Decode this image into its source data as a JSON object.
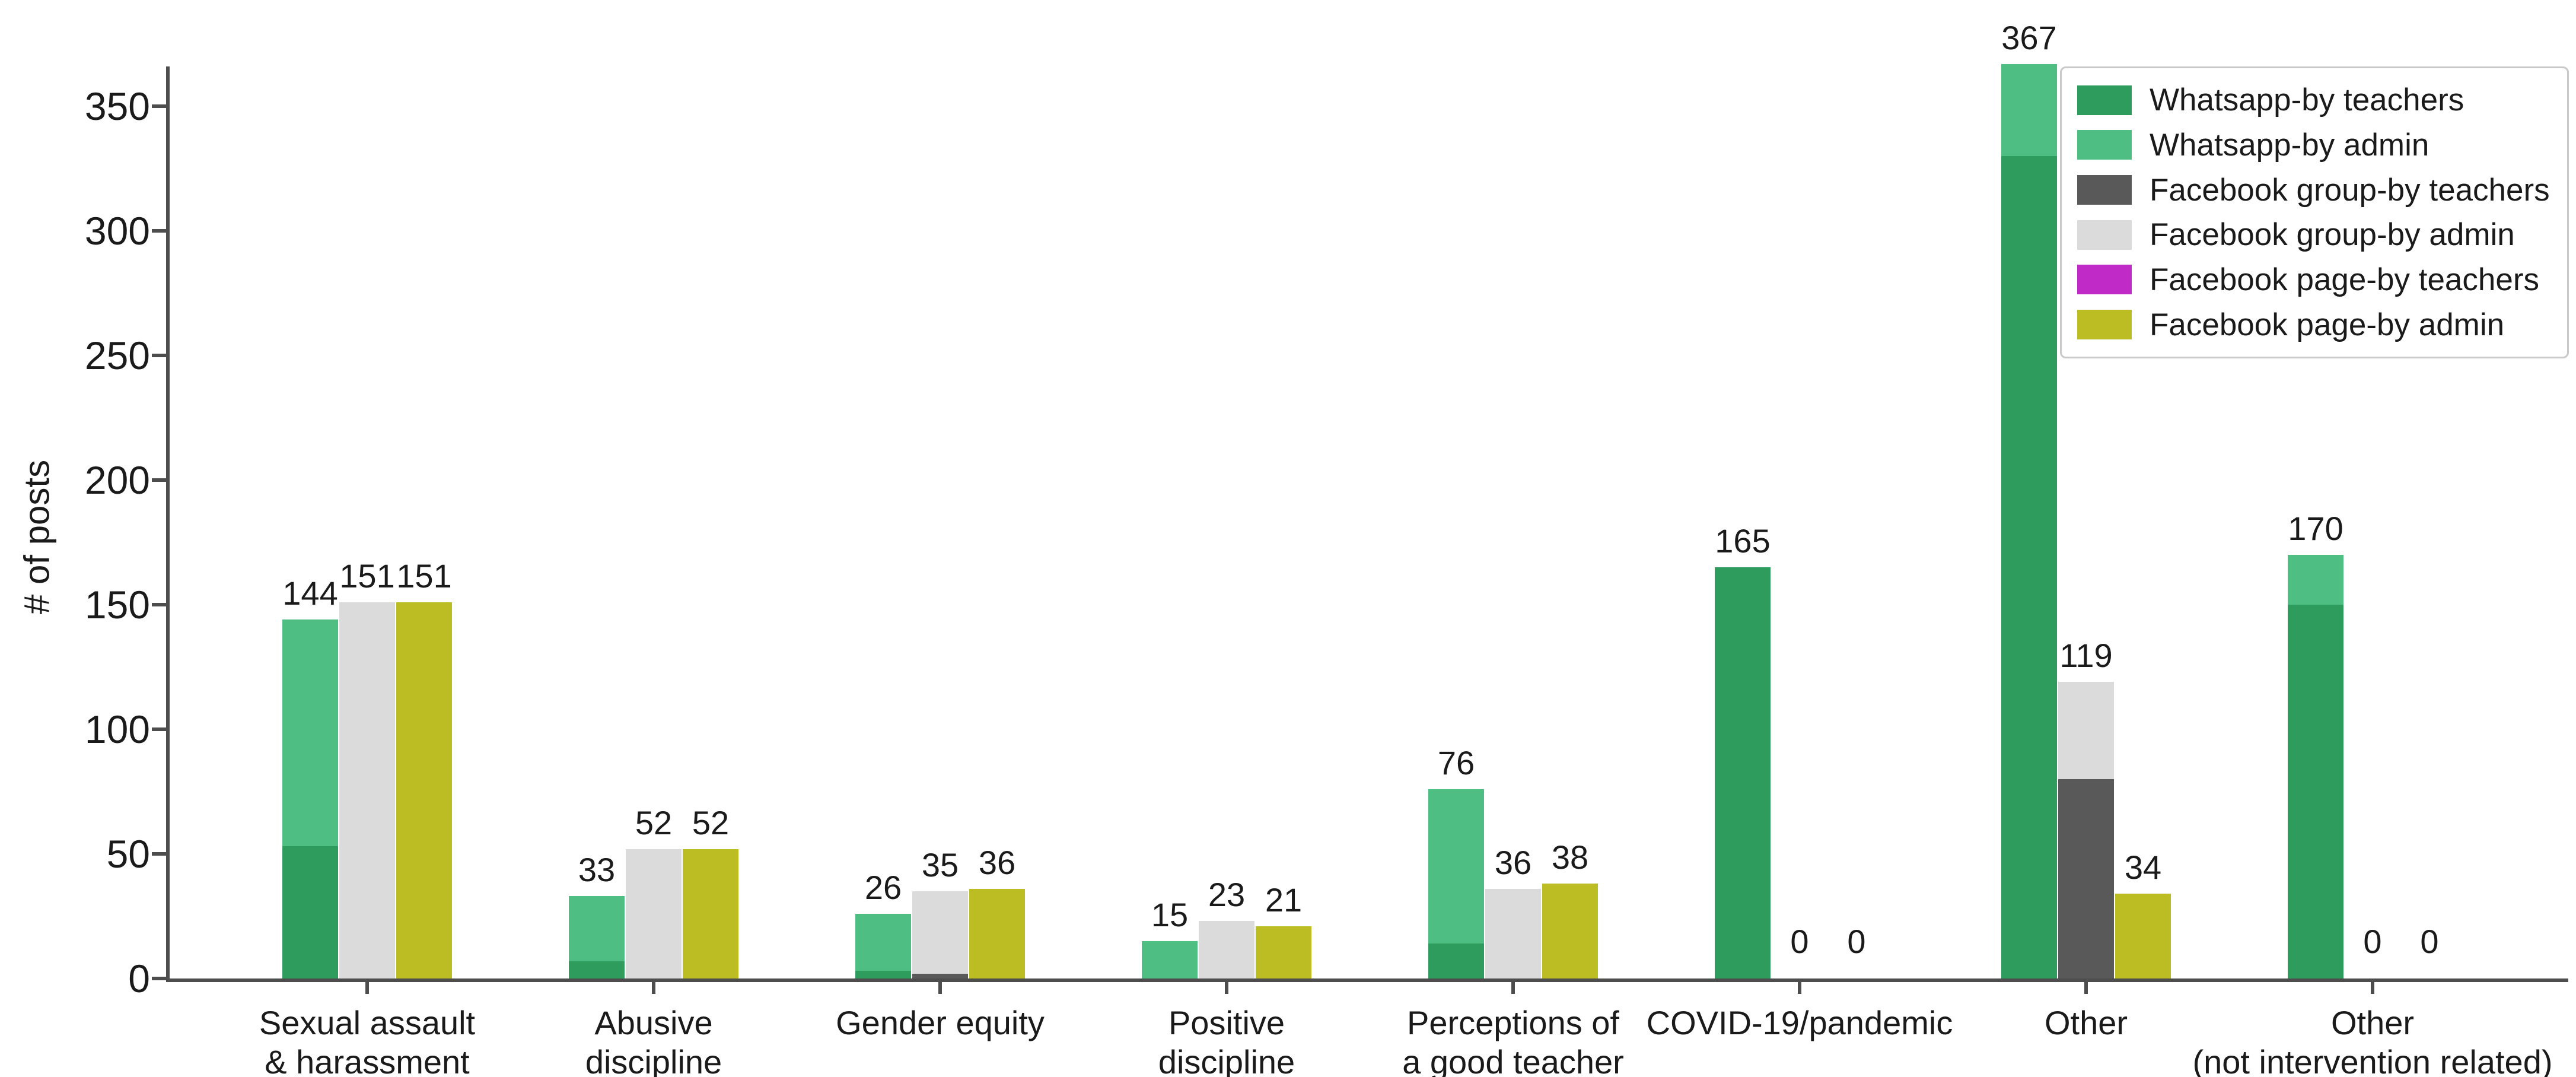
{
  "chart_data": {
    "type": "bar",
    "title": "",
    "xlabel": "",
    "ylabel": "# of posts",
    "ylim": [
      0,
      370
    ],
    "yticks": [
      0,
      50,
      100,
      150,
      200,
      250,
      300,
      350
    ],
    "grid": false,
    "legend_position": "upper right",
    "legend": [
      {
        "name": "Whatsapp-by teachers",
        "color": "#2E9C5C"
      },
      {
        "name": "Whatsapp-by admin",
        "color": "#4FBE82"
      },
      {
        "name": "Facebook group-by teachers",
        "color": "#595959"
      },
      {
        "name": "Facebook group-by admin",
        "color": "#DBDBDB"
      },
      {
        "name": "Facebook page-by teachers",
        "color": "#C02BC7"
      },
      {
        "name": "Facebook page-by admin",
        "color": "#BCBD22"
      }
    ],
    "bar_slots": [
      "whatsapp",
      "facebook_group",
      "facebook_page"
    ],
    "note": "Each category has 3 stacked bars: teachers segment on bottom, admin segment on top. Label above each bar is the stack total.",
    "categories": [
      {
        "label": "Sexual assault\n& harassment",
        "bars": [
          {
            "slot": "whatsapp",
            "total": 144,
            "teachers": 53,
            "admin": 91
          },
          {
            "slot": "facebook_group",
            "total": 151,
            "teachers": 0,
            "admin": 151
          },
          {
            "slot": "facebook_page",
            "total": 151,
            "teachers": 0,
            "admin": 151
          }
        ]
      },
      {
        "label": "Abusive\ndiscipline",
        "bars": [
          {
            "slot": "whatsapp",
            "total": 33,
            "teachers": 7,
            "admin": 26
          },
          {
            "slot": "facebook_group",
            "total": 52,
            "teachers": 0,
            "admin": 52
          },
          {
            "slot": "facebook_page",
            "total": 52,
            "teachers": 0,
            "admin": 52
          }
        ]
      },
      {
        "label": "Gender equity",
        "bars": [
          {
            "slot": "whatsapp",
            "total": 26,
            "teachers": 3,
            "admin": 23
          },
          {
            "slot": "facebook_group",
            "total": 35,
            "teachers": 2,
            "admin": 33
          },
          {
            "slot": "facebook_page",
            "total": 36,
            "teachers": 0,
            "admin": 36
          }
        ]
      },
      {
        "label": "Positive\ndiscipline",
        "bars": [
          {
            "slot": "whatsapp",
            "total": 15,
            "teachers": 0,
            "admin": 15
          },
          {
            "slot": "facebook_group",
            "total": 23,
            "teachers": 0,
            "admin": 23
          },
          {
            "slot": "facebook_page",
            "total": 21,
            "teachers": 0,
            "admin": 21
          }
        ]
      },
      {
        "label": "Perceptions of\na good teacher",
        "bars": [
          {
            "slot": "whatsapp",
            "total": 76,
            "teachers": 14,
            "admin": 62
          },
          {
            "slot": "facebook_group",
            "total": 36,
            "teachers": 0,
            "admin": 36
          },
          {
            "slot": "facebook_page",
            "total": 38,
            "teachers": 0,
            "admin": 38
          }
        ]
      },
      {
        "label": "COVID-19/pandemic",
        "bars": [
          {
            "slot": "whatsapp",
            "total": 165,
            "teachers": 165,
            "admin": 0
          },
          {
            "slot": "facebook_group",
            "total": 0,
            "teachers": 0,
            "admin": 0
          },
          {
            "slot": "facebook_page",
            "total": 0,
            "teachers": 0,
            "admin": 0
          }
        ]
      },
      {
        "label": "Other",
        "bars": [
          {
            "slot": "whatsapp",
            "total": 367,
            "teachers": 330,
            "admin": 37
          },
          {
            "slot": "facebook_group",
            "total": 119,
            "teachers": 80,
            "admin": 39
          },
          {
            "slot": "facebook_page",
            "total": 34,
            "teachers": 0,
            "admin": 34
          }
        ]
      },
      {
        "label": "Other\n(not intervention related)",
        "bars": [
          {
            "slot": "whatsapp",
            "total": 170,
            "teachers": 150,
            "admin": 20
          },
          {
            "slot": "facebook_group",
            "total": 0,
            "teachers": 0,
            "admin": 0
          },
          {
            "slot": "facebook_page",
            "total": 0,
            "teachers": 0,
            "admin": 0
          }
        ]
      }
    ],
    "zero_label": "0"
  },
  "colors": {
    "axis": "#4d4d4d",
    "text": "#1a1a1a",
    "background": "#ffffff",
    "legend_border": "#c9c9c9"
  }
}
